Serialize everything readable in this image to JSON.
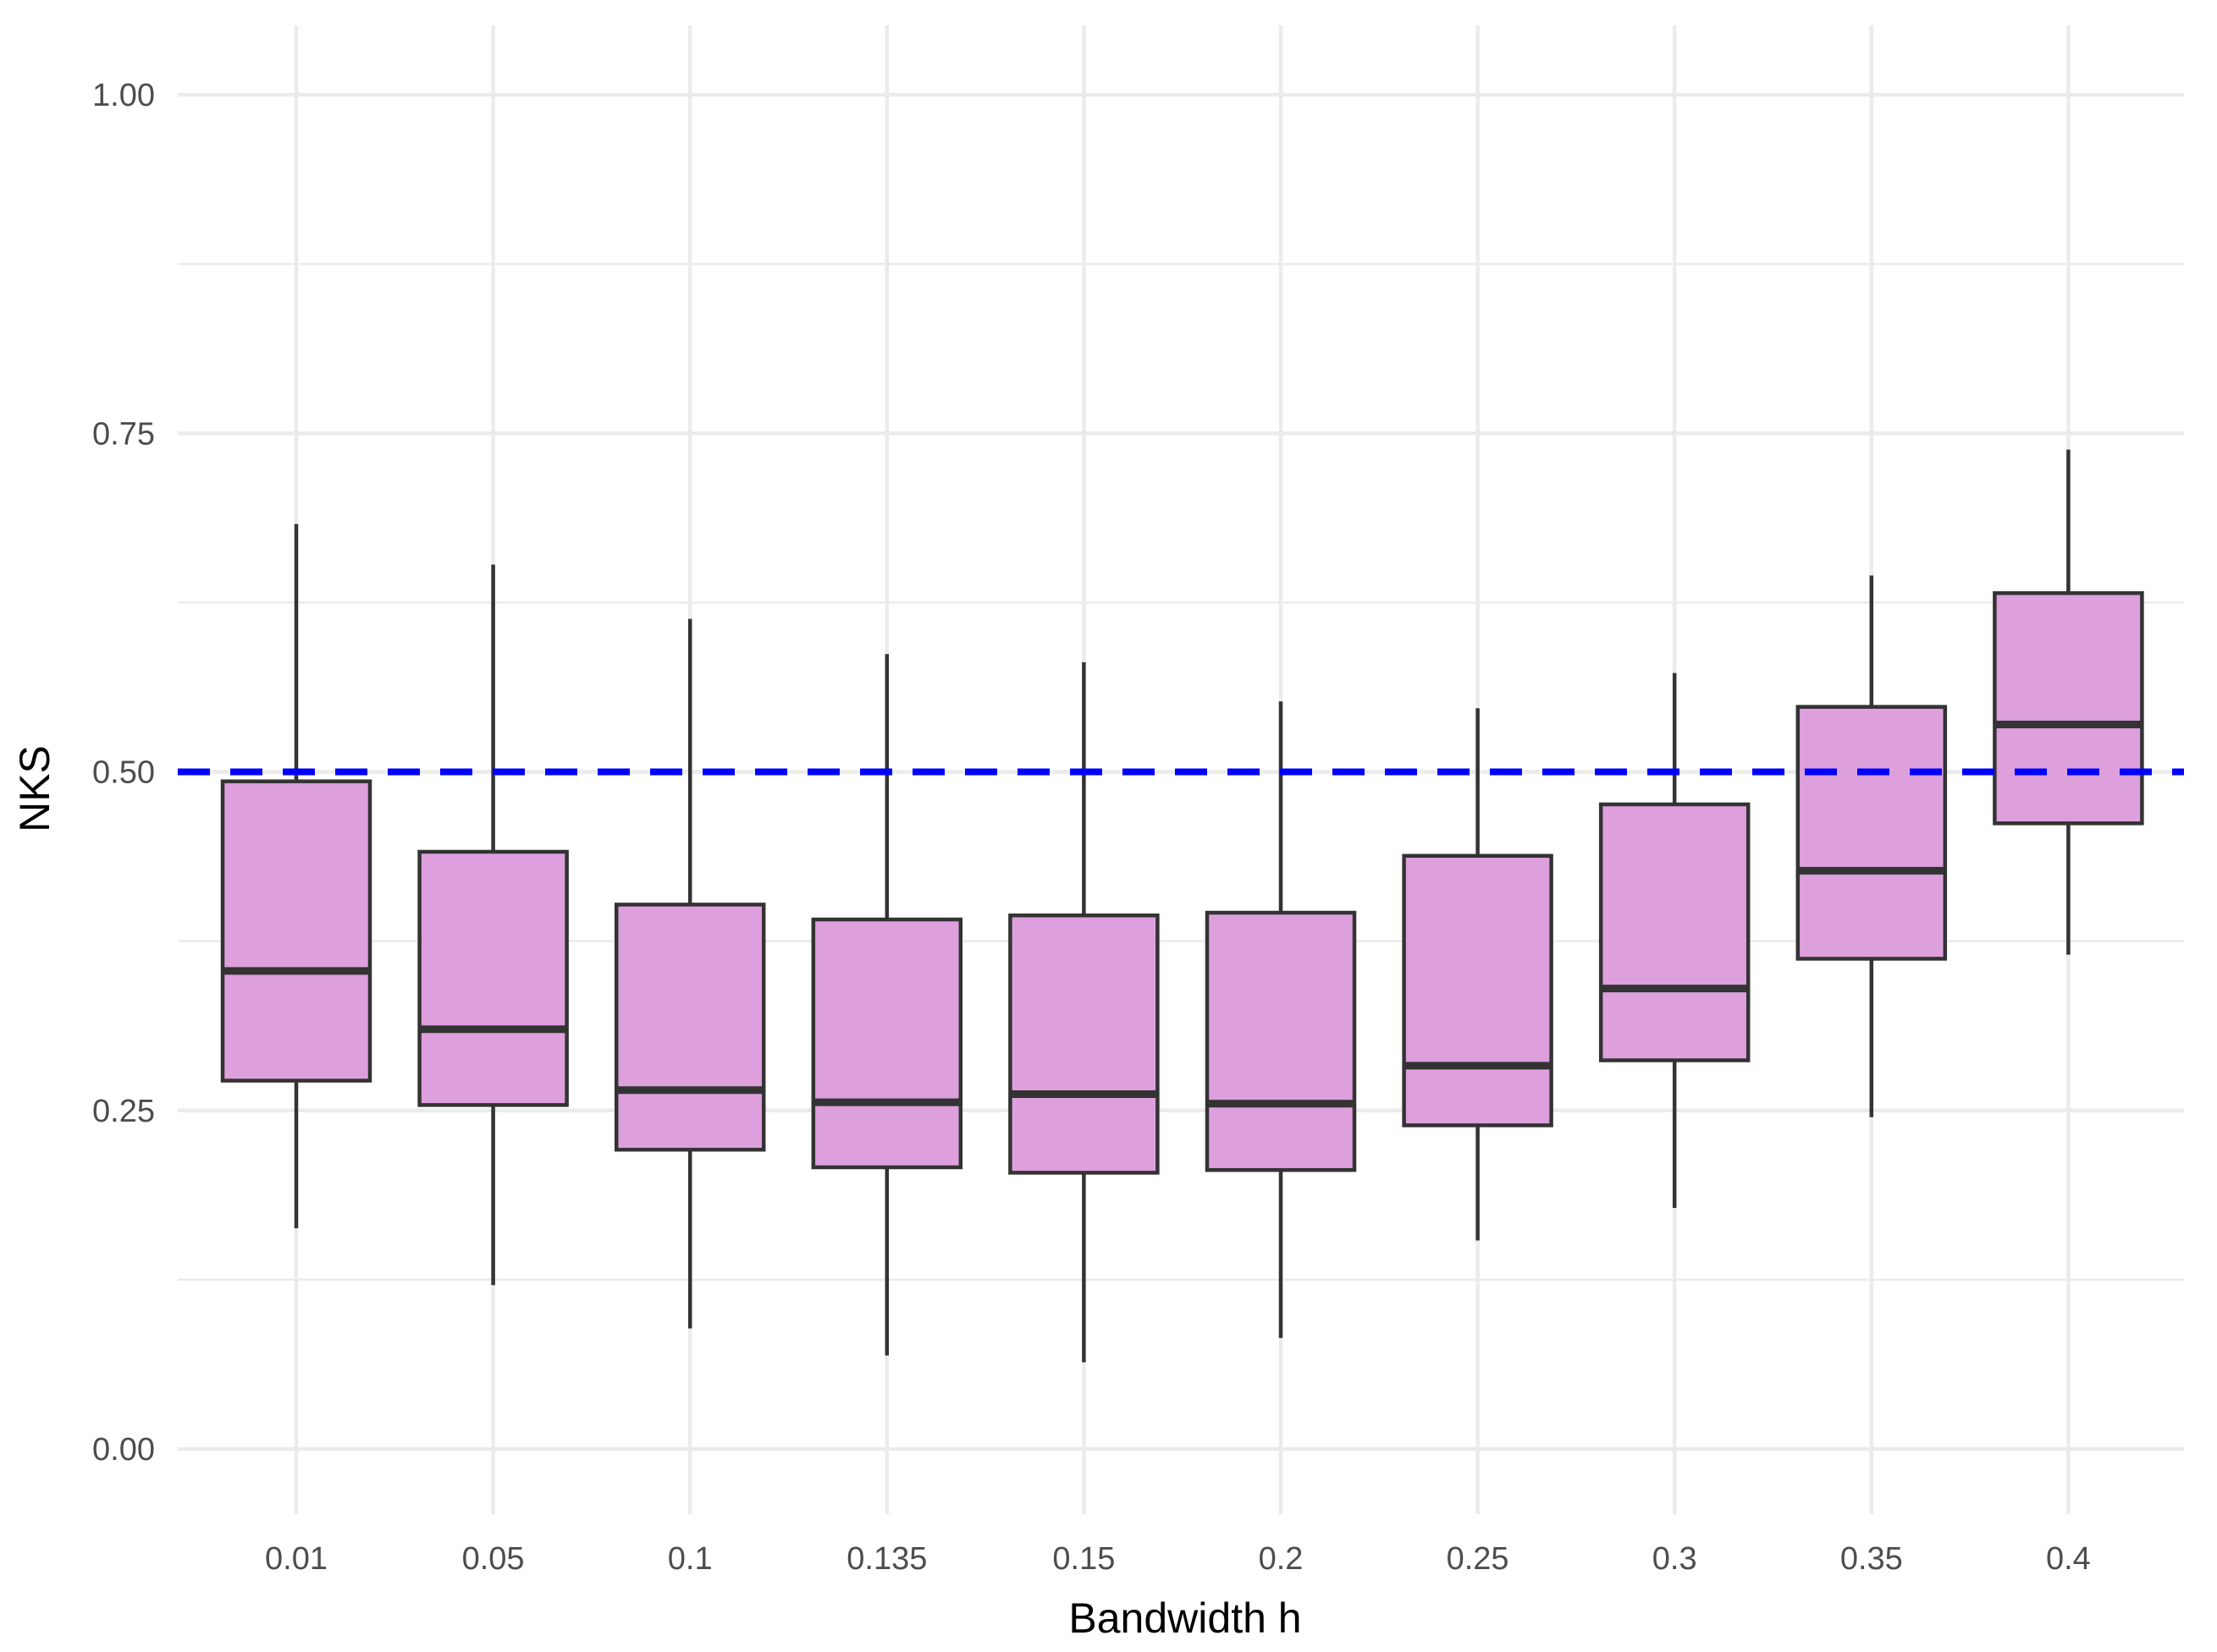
{
  "chart_data": {
    "type": "boxplot",
    "xlabel": "Bandwidth h",
    "ylabel": "NKS",
    "ylim": [
      0,
      1
    ],
    "y_ticks": [
      "0.00",
      "0.25",
      "0.50",
      "0.75",
      "1.00"
    ],
    "y_tick_values": [
      0,
      0.25,
      0.5,
      0.75,
      1.0
    ],
    "categories": [
      "0.01",
      "0.05",
      "0.1",
      "0.135",
      "0.15",
      "0.2",
      "0.25",
      "0.3",
      "0.35",
      "0.4"
    ],
    "boxes": [
      {
        "min": 0.163,
        "q1": 0.272,
        "median": 0.353,
        "q3": 0.493,
        "max": 0.683
      },
      {
        "min": 0.121,
        "q1": 0.254,
        "median": 0.31,
        "q3": 0.441,
        "max": 0.653
      },
      {
        "min": 0.089,
        "q1": 0.221,
        "median": 0.265,
        "q3": 0.402,
        "max": 0.613
      },
      {
        "min": 0.069,
        "q1": 0.208,
        "median": 0.256,
        "q3": 0.391,
        "max": 0.587
      },
      {
        "min": 0.064,
        "q1": 0.204,
        "median": 0.262,
        "q3": 0.394,
        "max": 0.581
      },
      {
        "min": 0.082,
        "q1": 0.206,
        "median": 0.255,
        "q3": 0.396,
        "max": 0.552
      },
      {
        "min": 0.154,
        "q1": 0.239,
        "median": 0.283,
        "q3": 0.438,
        "max": 0.547
      },
      {
        "min": 0.178,
        "q1": 0.287,
        "median": 0.34,
        "q3": 0.476,
        "max": 0.573
      },
      {
        "min": 0.245,
        "q1": 0.362,
        "median": 0.427,
        "q3": 0.548,
        "max": 0.645
      },
      {
        "min": 0.365,
        "q1": 0.462,
        "median": 0.535,
        "q3": 0.632,
        "max": 0.738
      }
    ],
    "reference_line": {
      "y": 0.5,
      "style": "dashed",
      "color": "#0000ff"
    },
    "box_fill": "#dda0dd",
    "box_stroke": "#333333",
    "grid": true,
    "legend": "none"
  }
}
